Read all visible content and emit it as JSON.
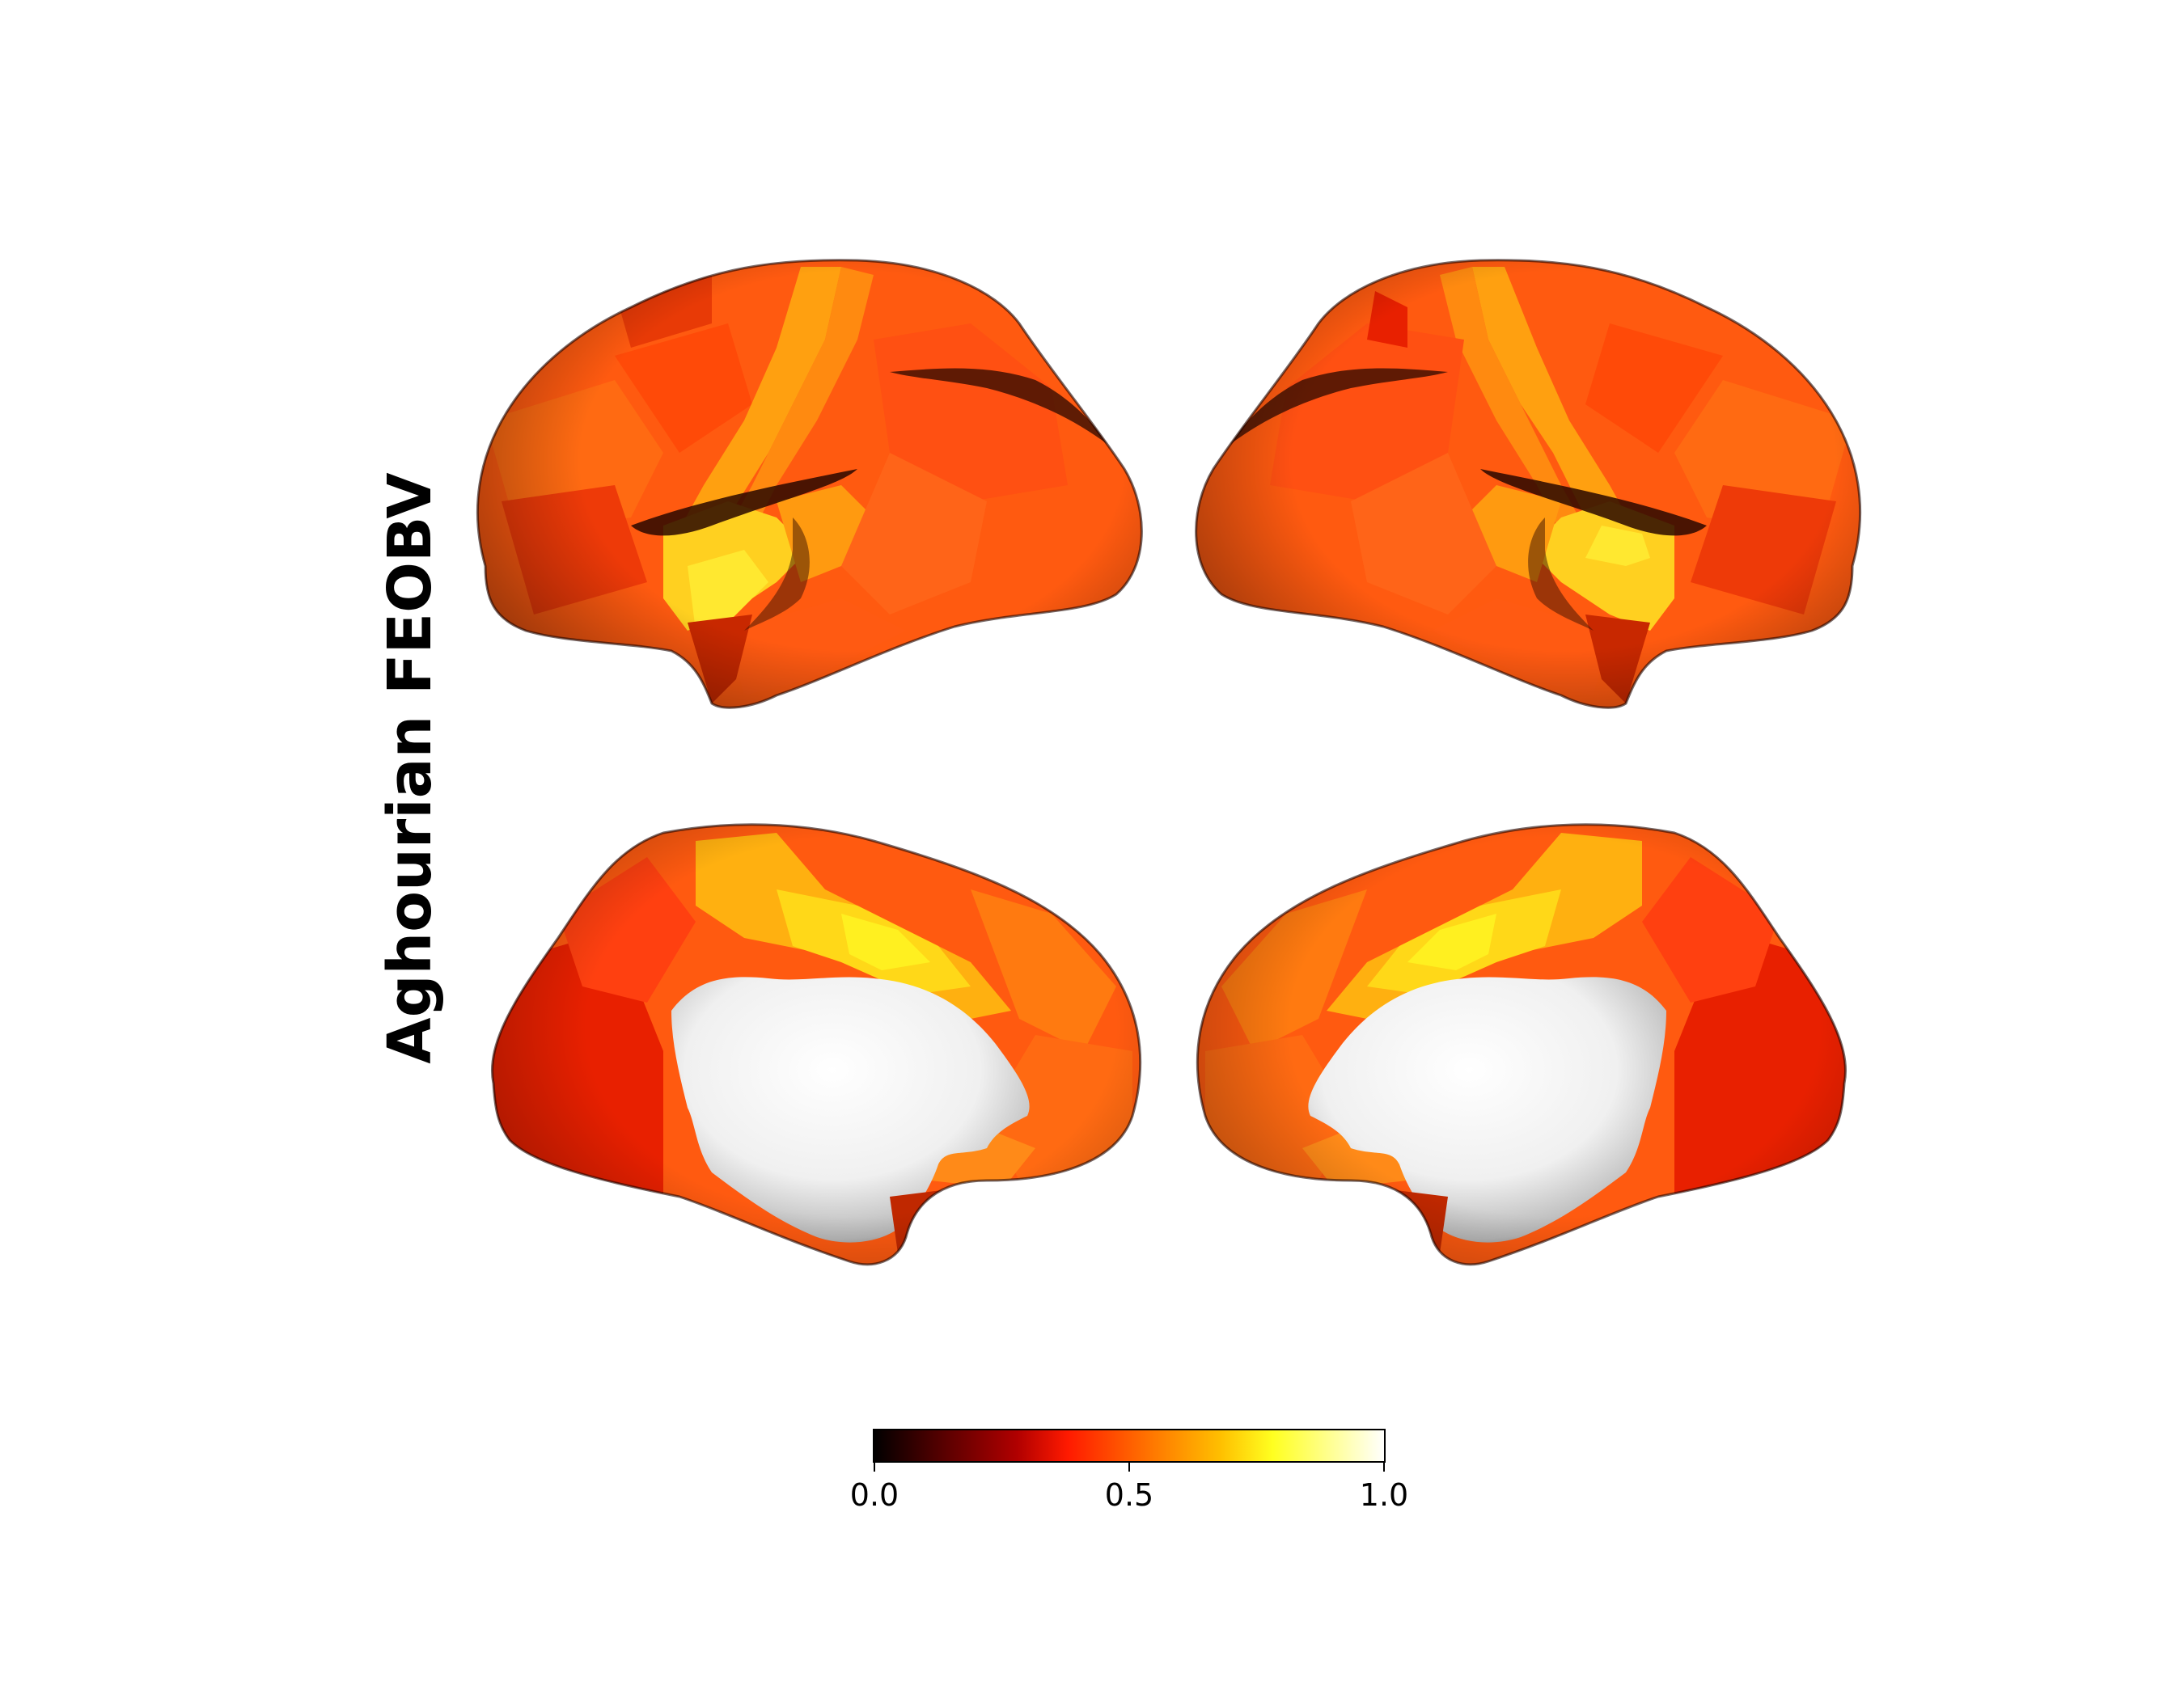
{
  "figure": {
    "title": "Aghourian FEOBV",
    "panels": [
      {
        "name": "left-lateral"
      },
      {
        "name": "right-lateral"
      },
      {
        "name": "left-medial"
      },
      {
        "name": "right-medial"
      }
    ]
  },
  "colorbar": {
    "colormap": "hot",
    "stops": [
      "#000000",
      "#5a0000",
      "#b00000",
      "#ff2000",
      "#ff8000",
      "#ffd000",
      "#ffff40",
      "#ffffff"
    ],
    "ticks": [
      "0.0",
      "0.5",
      "1.0"
    ],
    "range": [
      0.0,
      1.0
    ]
  },
  "colors": {
    "base_orange": "#ff5a10",
    "deep_red": "#e02000",
    "mid_orange": "#ff8a10",
    "amber": "#ffae10",
    "yellow": "#ffe020",
    "sulcus_dark": "#3a0a00",
    "medial_wall": "#f2f2f2"
  }
}
